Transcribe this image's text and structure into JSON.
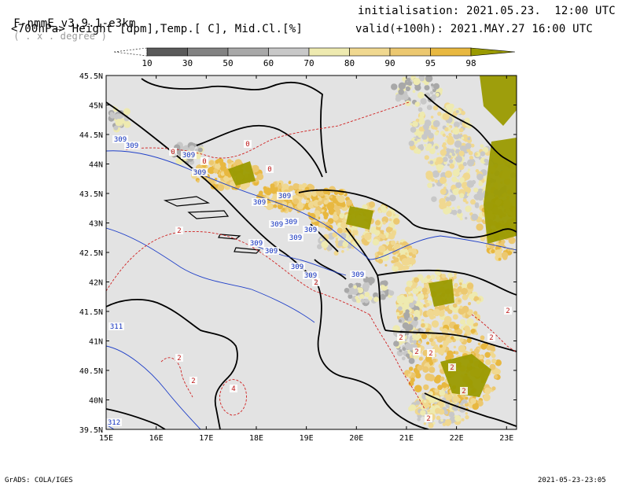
{
  "header": {
    "model": "F-nmmE_v3.9.1-e3km",
    "units_note": "( . x . degree )",
    "initialisation": "initialisation: 2021.05.23.  12:00 UTC",
    "variables": "<700hPa> Height [dpm],Temp.[ C], Mid.Cl.[%]",
    "valid": "valid(+100h): 2021.MAY.27 16:00 UTC"
  },
  "colorbar": {
    "labels": [
      "10",
      "30",
      "50",
      "60",
      "70",
      "80",
      "90",
      "95",
      "98"
    ],
    "colors": [
      "#5a5a5a",
      "#828282",
      "#a8a8a8",
      "#c8c8c8",
      "#eeeab0",
      "#f0d890",
      "#ecc870",
      "#e8b840",
      "#9a9a00"
    ]
  },
  "map": {
    "lon_labels": [
      "15E",
      "16E",
      "17E",
      "18E",
      "19E",
      "20E",
      "21E",
      "22E",
      "23E"
    ],
    "lat_labels": [
      "45.5N",
      "45N",
      "44.5N",
      "44N",
      "43.5N",
      "43N",
      "42.5N",
      "42N",
      "41.5N",
      "41N",
      "40.5N",
      "40N",
      "39.5N"
    ],
    "height_labels": [
      "309",
      "309",
      "309",
      "309",
      "309",
      "309",
      "309",
      "309",
      "309",
      "309",
      "309",
      "309",
      "309",
      "309",
      "309",
      "311",
      "312"
    ],
    "temp_labels": [
      "0",
      "0",
      "0",
      "0",
      "2",
      "2",
      "2",
      "2",
      "4",
      "2",
      "2",
      "2",
      "2",
      "2",
      "2",
      "2",
      "2"
    ]
  },
  "footer": {
    "left": "GrADS: COLA/IGES",
    "right": "2021-05-23-23:05"
  }
}
